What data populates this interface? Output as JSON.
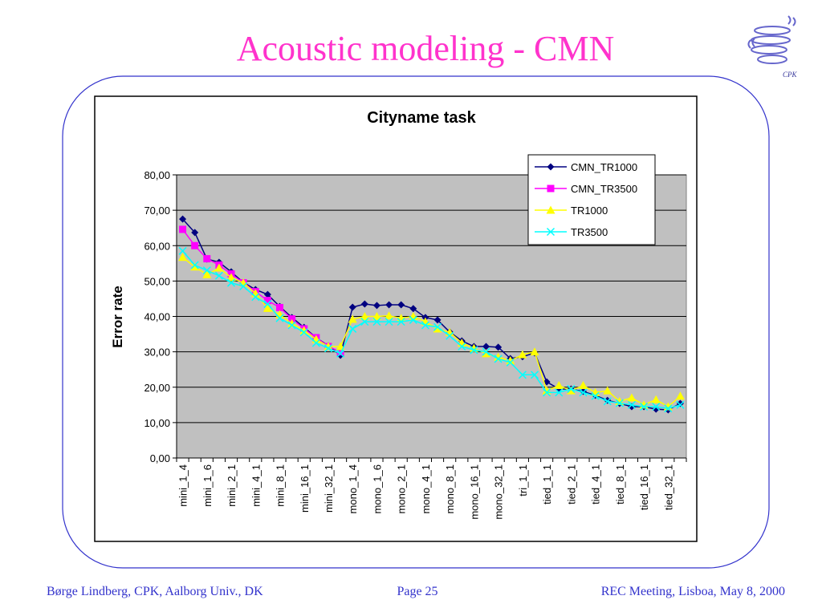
{
  "slide": {
    "title": "Acoustic modeling - CMN",
    "logo": "CPK",
    "footer": {
      "left": "Børge Lindberg, CPK, Aalborg Univ., DK",
      "center": "Page 25",
      "right": "REC Meeting, Lisboa, May 8, 2000"
    }
  },
  "chart_data": {
    "type": "line",
    "title": "Cityname task",
    "y_label": "Error rate",
    "categories": [
      "mini_1_4",
      null,
      "mini_1_6",
      null,
      "mini_2_1",
      null,
      "mini_4_1",
      null,
      "mini_8_1",
      null,
      "mini_16_1",
      null,
      "mini_32_1",
      null,
      "mono_1_4",
      null,
      "mono_1_6",
      null,
      "mono_2_1",
      null,
      "mono_4_1",
      null,
      "mono_8_1",
      null,
      "mono_16_1",
      null,
      "mono_32_1",
      null,
      "tri_1_1",
      null,
      "tied_1_1",
      null,
      "tied_2_1",
      null,
      "tied_4_1",
      null,
      "tied_8_1",
      null,
      "tied_16_1",
      null,
      "tied_32_1",
      null
    ],
    "series": [
      {
        "name": "CMN_TR1000",
        "color": "#000080",
        "marker": "diamond",
        "values": [
          67.5,
          63.7,
          56.2,
          55.3,
          52.6,
          49.6,
          47.6,
          46.2,
          42.8,
          39.7,
          36.9,
          34.0,
          31.7,
          29.0,
          42.6,
          43.5,
          43.1,
          43.3,
          43.3,
          42.2,
          39.7,
          39.0,
          35.6,
          33.1,
          31.5,
          31.5,
          31.3,
          28.1,
          28.6,
          29.7,
          21.5,
          19.5,
          19.5,
          18.8,
          17.7,
          16.3,
          15.4,
          14.5,
          14.5,
          13.8,
          13.6,
          15.4
        ]
      },
      {
        "name": "CMN_TR3500",
        "color": "#ff00ff",
        "marker": "square",
        "values": [
          64.6,
          60.0,
          56.3,
          54.5,
          52.0,
          49.5,
          47.0,
          44.5,
          42.5,
          39.3,
          36.5,
          34.0,
          31.5,
          30.0,
          null,
          null,
          null,
          null,
          null,
          null,
          null,
          null,
          null,
          null,
          null,
          null,
          null,
          null,
          null,
          null,
          null,
          null,
          null,
          null,
          null,
          null,
          null,
          null,
          null,
          null,
          null,
          null
        ]
      },
      {
        "name": "TR1000",
        "color": "#ffff00",
        "marker": "triangle",
        "values": [
          56.7,
          54.0,
          51.8,
          53.7,
          51.0,
          49.5,
          46.5,
          42.3,
          40.5,
          38.0,
          36.0,
          33.5,
          31.5,
          31.5,
          39.2,
          40.0,
          40.0,
          40.2,
          39.5,
          40.0,
          38.5,
          36.5,
          35.5,
          32.5,
          31.0,
          29.5,
          28.5,
          27.5,
          29.2,
          30.0,
          19.0,
          20.5,
          19.0,
          20.5,
          18.5,
          19.0,
          16.0,
          17.0,
          15.0,
          16.5,
          14.5,
          17.5
        ]
      },
      {
        "name": "TR3500",
        "color": "#00ffff",
        "marker": "x",
        "values": [
          58.5,
          54.5,
          53.0,
          51.5,
          49.5,
          48.5,
          45.5,
          43.5,
          39.5,
          37.5,
          35.5,
          32.5,
          31.0,
          29.5,
          36.5,
          38.5,
          38.5,
          38.5,
          38.5,
          39.0,
          37.5,
          37.0,
          34.5,
          31.5,
          30.5,
          30.0,
          28.0,
          27.0,
          23.5,
          23.5,
          18.5,
          18.5,
          19.5,
          18.5,
          17.5,
          16.0,
          15.5,
          15.0,
          14.5,
          14.5,
          14.0,
          15.0
        ]
      }
    ],
    "ylim": [
      0,
      80
    ],
    "yticks": [
      {
        "value": 0,
        "label": "0,00"
      },
      {
        "value": 10,
        "label": "10,00"
      },
      {
        "value": 20,
        "label": "20,00"
      },
      {
        "value": 30,
        "label": "30,00"
      },
      {
        "value": 40,
        "label": "40,00"
      },
      {
        "value": 50,
        "label": "50,00"
      },
      {
        "value": 60,
        "label": "60,00"
      },
      {
        "value": 70,
        "label": "70,00"
      },
      {
        "value": 80,
        "label": "80,00"
      }
    ],
    "grid": true,
    "legend": "top-right",
    "plot_background": "#c0c0c0"
  }
}
